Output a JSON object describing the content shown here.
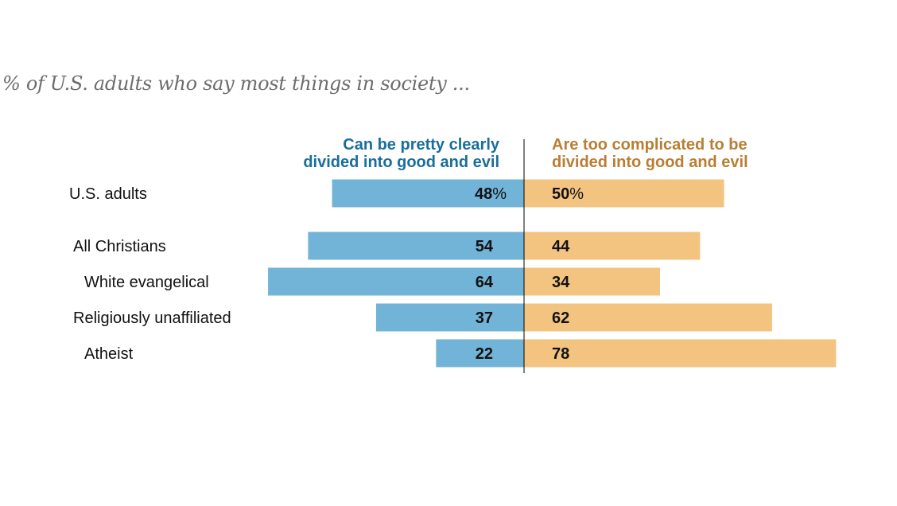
{
  "chart_data": {
    "type": "bar",
    "orientation": "horizontal-diverging",
    "title": "",
    "subtitle": "% of U.S. adults who say most things in society ...",
    "categories": [
      "U.S. adults",
      "All Christians",
      "White evangelical",
      "Religiously unaffiliated",
      "Atheist"
    ],
    "category_indent": [
      0,
      0,
      1,
      0,
      1
    ],
    "series": [
      {
        "name": "Can be pretty clearly divided into good and evil",
        "header_lines": [
          "Can be pretty clearly",
          "divided into good and evil"
        ],
        "color": "#72b3d8",
        "header_color": "#1a6e9c",
        "direction": "left",
        "values": [
          48,
          54,
          64,
          37,
          22
        ]
      },
      {
        "name": "Are too complicated to be divided into good and evil",
        "header_lines": [
          "Are too complicated to be",
          "divided into good and evil"
        ],
        "color": "#f3c380",
        "header_color": "#b97e34",
        "direction": "right",
        "values": [
          50,
          44,
          34,
          62,
          78
        ]
      }
    ],
    "value_suffix_first_row": "%",
    "xlim": [
      0,
      100
    ],
    "grid": false,
    "legend": "column-headers",
    "xlabel": "",
    "ylabel": ""
  }
}
